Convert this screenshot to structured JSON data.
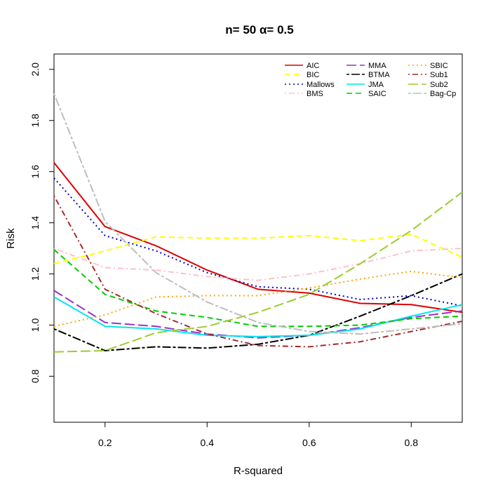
{
  "chart_data": {
    "type": "line",
    "title": "n= 50 α= 0.5",
    "xlabel": "R-squared",
    "ylabel": "Risk",
    "xlim": [
      0.1,
      0.9
    ],
    "ylim": [
      0.62,
      2.06
    ],
    "x": [
      0.1,
      0.2,
      0.3,
      0.4,
      0.5,
      0.6,
      0.7,
      0.8,
      0.9
    ],
    "x_ticks": [
      0.2,
      0.4,
      0.6,
      0.8
    ],
    "x_tick_labels": [
      "0.2",
      "0.4",
      "0.6",
      "0.8"
    ],
    "y_ticks": [
      0.8,
      1.0,
      1.2,
      1.4,
      1.6,
      1.8,
      2.0
    ],
    "y_tick_labels": [
      "0.8",
      "1.0",
      "1.2",
      "1.4",
      "1.6",
      "1.8",
      "2.0"
    ],
    "legend_position": "top-right",
    "series": [
      {
        "name": "AIC",
        "color": "#dd0000",
        "dash": "solid",
        "values": [
          1.635,
          1.385,
          1.31,
          1.215,
          1.14,
          1.125,
          1.085,
          1.08,
          1.05
        ]
      },
      {
        "name": "BIC",
        "color": "#ffff00",
        "dash": "dashed",
        "values": [
          1.24,
          1.29,
          1.345,
          1.34,
          1.34,
          1.35,
          1.33,
          1.355,
          1.265
        ]
      },
      {
        "name": "Mallows",
        "color": "#0000cc",
        "dash": "dotted",
        "values": [
          1.575,
          1.35,
          1.29,
          1.205,
          1.15,
          1.14,
          1.1,
          1.115,
          1.075
        ]
      },
      {
        "name": "BMS",
        "color": "#ffc0cb",
        "dash": "dotdash",
        "values": [
          1.3,
          1.225,
          1.215,
          1.19,
          1.175,
          1.2,
          1.24,
          1.29,
          1.3
        ]
      },
      {
        "name": "MMA",
        "color": "#9932cc",
        "dash": "longdash",
        "values": [
          1.135,
          1.01,
          0.995,
          0.965,
          0.95,
          0.96,
          0.99,
          1.03,
          1.055
        ]
      },
      {
        "name": "BTMA",
        "color": "#000000",
        "dash": "twodash",
        "values": [
          0.985,
          0.9,
          0.915,
          0.91,
          0.925,
          0.96,
          1.035,
          1.115,
          1.2
        ]
      },
      {
        "name": "JMA",
        "color": "#00e5ee",
        "dash": "solid",
        "values": [
          1.11,
          0.995,
          0.985,
          0.96,
          0.955,
          0.96,
          0.985,
          1.035,
          1.08
        ]
      },
      {
        "name": "SAIC",
        "color": "#00cc00",
        "dash": "dashed",
        "values": [
          1.295,
          1.12,
          1.055,
          1.03,
          0.995,
          0.995,
          1.0,
          1.025,
          1.035
        ]
      },
      {
        "name": "SBIC",
        "color": "#ffa500",
        "dash": "dotted",
        "values": [
          0.995,
          1.04,
          1.11,
          1.115,
          1.115,
          1.145,
          1.18,
          1.21,
          1.185
        ]
      },
      {
        "name": "Sub1",
        "color": "#a52a2a",
        "dash": "dotdash",
        "values": [
          1.505,
          1.14,
          1.045,
          0.965,
          0.92,
          0.915,
          0.935,
          0.975,
          1.015
        ]
      },
      {
        "name": "Sub2",
        "color": "#9acd32",
        "dash": "longdash",
        "values": [
          0.895,
          0.9,
          0.97,
          0.995,
          1.05,
          1.12,
          1.24,
          1.37,
          1.52
        ]
      },
      {
        "name": "Bag-Cp",
        "color": "#bebebe",
        "dash": "twodash",
        "values": [
          1.905,
          1.405,
          1.205,
          1.09,
          1.01,
          0.975,
          0.965,
          0.985,
          1.005
        ]
      }
    ]
  }
}
